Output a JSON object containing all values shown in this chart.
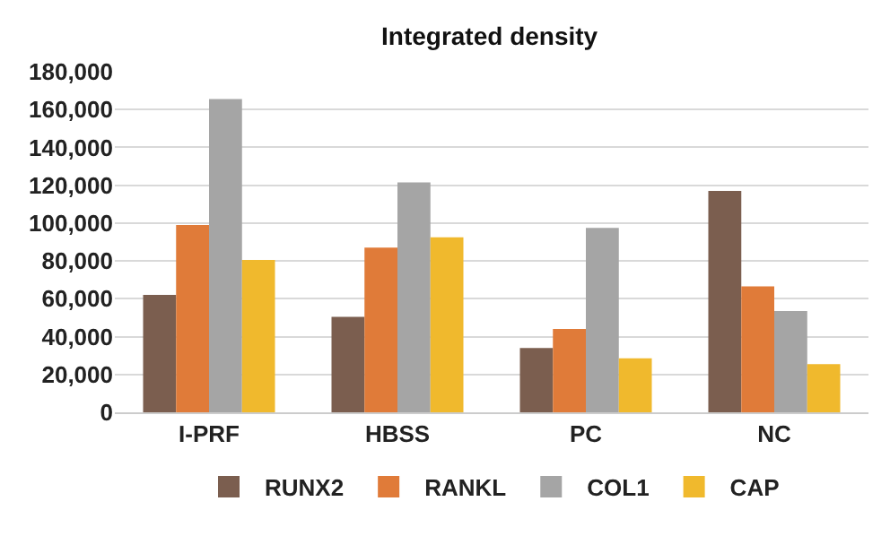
{
  "chart_data": {
    "type": "bar",
    "title": "Integrated density",
    "categories": [
      "I-PRF",
      "HBSS",
      "PC",
      "NC"
    ],
    "series": [
      {
        "name": "RUNX2",
        "color": "#7b5e4f",
        "values": [
          62000,
          50500,
          34000,
          117000
        ]
      },
      {
        "name": "RANKL",
        "color": "#e07b39",
        "values": [
          99000,
          87000,
          44000,
          66500
        ]
      },
      {
        "name": "COL1",
        "color": "#a5a5a5",
        "values": [
          165500,
          121500,
          97500,
          53500
        ]
      },
      {
        "name": "CAP",
        "color": "#f0b92d",
        "values": [
          80500,
          92500,
          28500,
          25500
        ]
      }
    ],
    "ylim": [
      0,
      180000
    ],
    "yticks": [
      {
        "value": 0,
        "label": "0"
      },
      {
        "value": 20000,
        "label": "20,000"
      },
      {
        "value": 40000,
        "label": "40,000"
      },
      {
        "value": 60000,
        "label": "60,000"
      },
      {
        "value": 80000,
        "label": "80,000"
      },
      {
        "value": 100000,
        "label": "100,000"
      },
      {
        "value": 120000,
        "label": "120,000"
      },
      {
        "value": 140000,
        "label": "140,000"
      },
      {
        "value": 160000,
        "label": "160,000"
      },
      {
        "value": 180000,
        "label": "180,000"
      }
    ],
    "grid": "y",
    "legend": "bottom"
  }
}
